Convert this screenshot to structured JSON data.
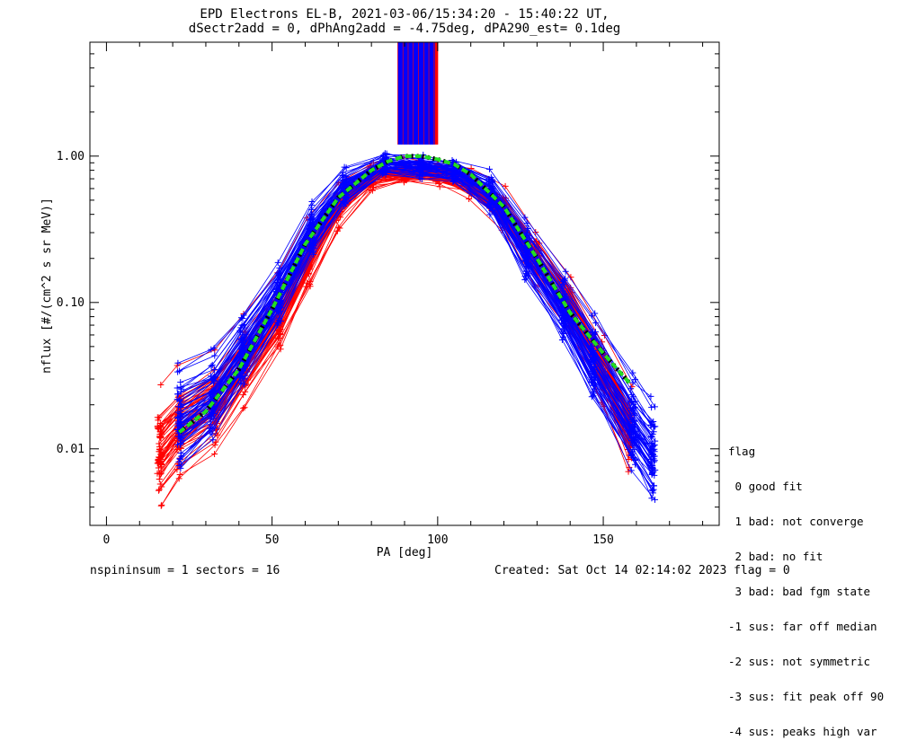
{
  "title_line1": "EPD Electrons EL-B, 2021-03-06/15:34:20 - 15:40:22 UT,",
  "title_line2": "dSectr2add = 0, dPhAng2add = -4.75deg, dPA290_est=   0.1deg",
  "footer": {
    "left": "nspininsum =  1  sectors = 16",
    "right": "Created: Sat Oct 14 02:14:02 2023   flag = 0"
  },
  "legend": {
    "title": "flag",
    "items": [
      " 0 good fit",
      " 1 bad: not converge",
      " 2 bad: no fit",
      " 3 bad: bad fgm state",
      "-1 sus: far off median",
      "-2 sus: not symmetric",
      "-3 sus: fit peak off 90",
      "-4 sus: peaks high var"
    ]
  },
  "colors": {
    "red": "#ff0000",
    "blue": "#0000ff",
    "fit": "#22dd22",
    "black": "#000000"
  },
  "chart_data": {
    "type": "line",
    "xlabel": "PA [deg]",
    "ylabel": "nflux [#/(cm^2 s sr MeV)]",
    "xlim": [
      -5,
      185
    ],
    "ylim": [
      0.003,
      6
    ],
    "yscale": "log",
    "xticks": [
      0,
      50,
      100,
      150
    ],
    "yticks": [
      0.01,
      0.1,
      1.0
    ],
    "ytick_labels": [
      "0.01",
      "0.10",
      "1.00"
    ],
    "fit_curve": {
      "x": [
        22,
        30,
        40,
        50,
        60,
        70,
        80,
        85,
        90,
        95,
        100,
        105,
        110,
        120,
        130,
        140,
        150,
        158
      ],
      "y": [
        0.013,
        0.018,
        0.035,
        0.09,
        0.25,
        0.52,
        0.8,
        0.92,
        1.0,
        1.0,
        0.95,
        0.88,
        0.75,
        0.45,
        0.2,
        0.085,
        0.045,
        0.028
      ]
    },
    "red_series": {
      "x": [
        16,
        22,
        33,
        42,
        52,
        61,
        70,
        80,
        90,
        100,
        110,
        120,
        130,
        140,
        150,
        158
      ],
      "median": [
        0.0095,
        0.014,
        0.02,
        0.038,
        0.08,
        0.2,
        0.45,
        0.72,
        0.78,
        0.76,
        0.65,
        0.42,
        0.2,
        0.09,
        0.035,
        0.013
      ],
      "spread": [
        0.33,
        0.3,
        0.28,
        0.25,
        0.22,
        0.18,
        0.12,
        0.06,
        0.05,
        0.05,
        0.07,
        0.1,
        0.14,
        0.17,
        0.2,
        0.25
      ]
    },
    "blue_series": {
      "x": [
        22,
        32,
        41,
        52,
        62,
        72,
        84,
        95,
        105,
        116,
        127,
        138,
        147,
        159,
        165
      ],
      "median": [
        0.015,
        0.022,
        0.045,
        0.11,
        0.3,
        0.6,
        0.88,
        0.85,
        0.8,
        0.55,
        0.22,
        0.09,
        0.04,
        0.014,
        0.009
      ],
      "spread": [
        0.3,
        0.26,
        0.22,
        0.18,
        0.14,
        0.1,
        0.05,
        0.05,
        0.06,
        0.11,
        0.17,
        0.2,
        0.24,
        0.28,
        0.3
      ]
    },
    "n_curves_per_series": 60,
    "vertical_lines": {
      "x_range": [
        88,
        100
      ],
      "top_y": 6,
      "bottom_y": 1.2,
      "colors": [
        "blue",
        "red"
      ]
    }
  }
}
